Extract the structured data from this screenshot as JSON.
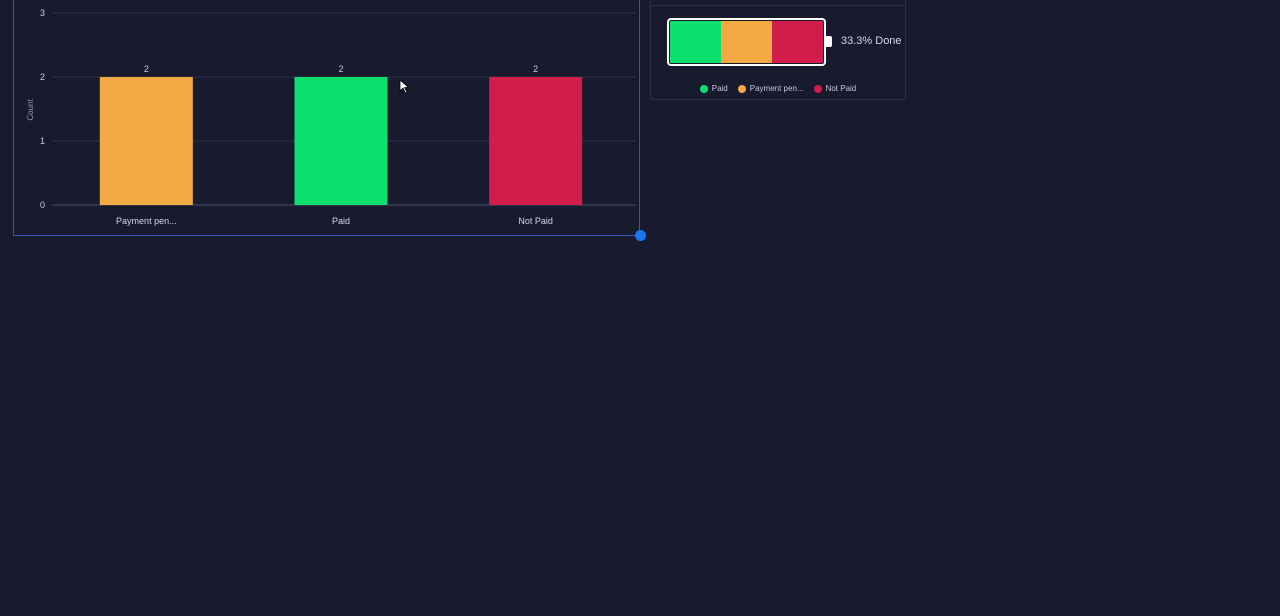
{
  "chart_data": {
    "type": "bar",
    "categories": [
      "Payment pen...",
      "Paid",
      "Not Paid"
    ],
    "values": [
      2,
      2,
      2
    ],
    "colors": [
      "#f3a944",
      "#0ee070",
      "#d11d4c"
    ],
    "ylabel": "Count",
    "ylim": [
      0,
      3
    ],
    "yticks": [
      0,
      1,
      2,
      3
    ],
    "grid": true,
    "data_labels": true
  },
  "battery": {
    "label": "33.3% Done",
    "segments": [
      {
        "name": "Paid",
        "color": "#0ee070",
        "fraction": 0.333
      },
      {
        "name": "Payment pen...",
        "color": "#f3a944",
        "fraction": 0.333
      },
      {
        "name": "Not Paid",
        "color": "#d11d4c",
        "fraction": 0.334
      }
    ]
  },
  "legend": [
    {
      "label": "Paid",
      "color": "#0ee070"
    },
    {
      "label": "Payment pen...",
      "color": "#f3a944"
    },
    {
      "label": "Not Paid",
      "color": "#d11d4c"
    }
  ],
  "colors": {
    "background": "#181b2e",
    "selection_border": "#2f56b8",
    "resize_handle": "#1976f0"
  }
}
